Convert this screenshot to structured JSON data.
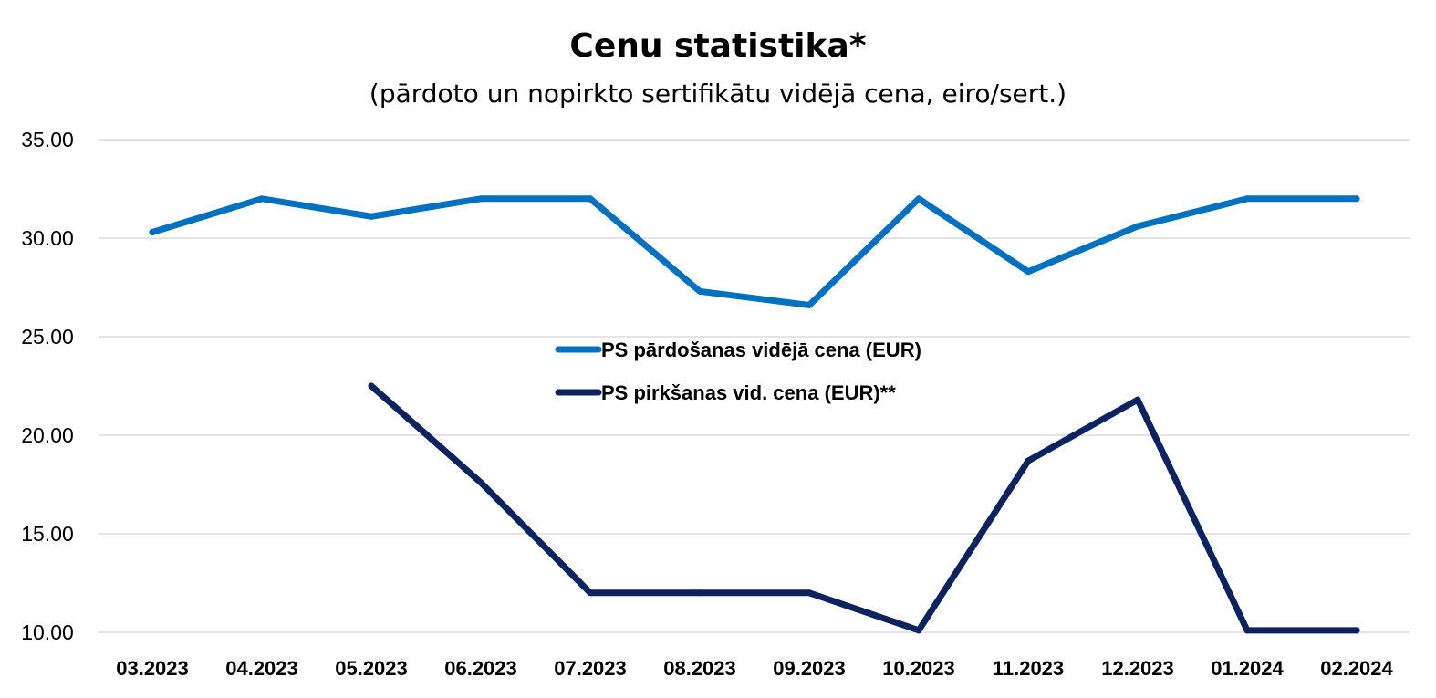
{
  "chart_data": {
    "type": "line",
    "title": "Cenu statistika*",
    "subtitle": "(pārdoto un nopirkto sertifikātu vidējā cena, eiro/sert.)",
    "xlabel": "",
    "ylabel": "",
    "ylim": [
      10,
      35
    ],
    "yticks": [
      "35.00",
      "30.00",
      "25.00",
      "20.00",
      "15.00",
      "10.00"
    ],
    "categories": [
      "03.2023",
      "04.2023",
      "05.2023",
      "06.2023",
      "07.2023",
      "08.2023",
      "09.2023",
      "10.2023",
      "11.2023",
      "12.2023",
      "01.2024",
      "02.2024"
    ],
    "grid": true,
    "legend_position": "center",
    "series": [
      {
        "name": "PS pārdošanas vidējā cena (EUR)",
        "color": "#0070c0",
        "values": [
          30.3,
          32.0,
          31.1,
          32.0,
          32.0,
          27.3,
          26.6,
          32.0,
          28.3,
          30.6,
          32.0,
          32.0
        ]
      },
      {
        "name": "PS pirkšanas vid. cena (EUR)**",
        "color": "#0d2360",
        "values": [
          null,
          null,
          22.5,
          17.6,
          12.0,
          12.0,
          12.0,
          10.1,
          18.7,
          21.8,
          10.1,
          10.1
        ]
      }
    ]
  }
}
